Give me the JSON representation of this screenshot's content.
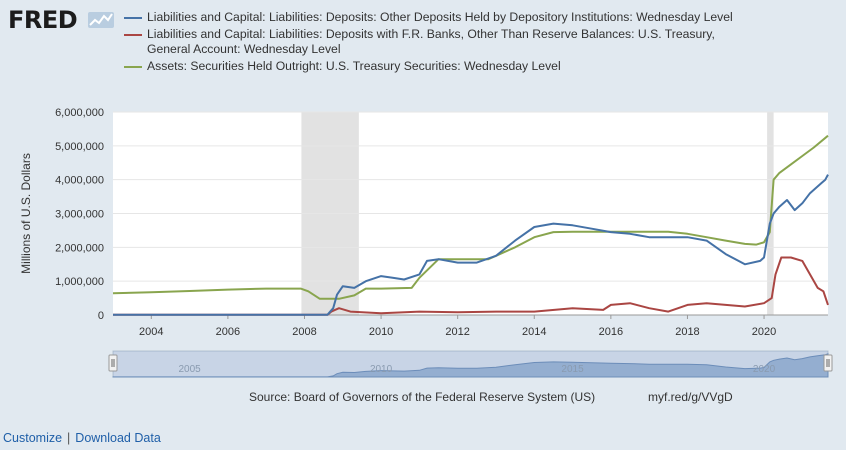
{
  "brand": {
    "logo_text": "FRED"
  },
  "legend": [
    {
      "label": "Liabilities and Capital: Liabilities: Deposits: Other Deposits Held by Depository Institutions: Wednesday Level",
      "color": "#4572a7"
    },
    {
      "label": "Liabilities and Capital: Liabilities: Deposits with F.R. Banks, Other Than Reserve Balances: U.S. Treasury, General Account: Wednesday Level",
      "color": "#aa4643"
    },
    {
      "label": "Assets: Securities Held Outright: U.S. Treasury Securities: Wednesday Level",
      "color": "#89a54e"
    }
  ],
  "chart_data": {
    "type": "line",
    "ylabel": "Millions of U.S. Dollars",
    "ylim": [
      0,
      6000000
    ],
    "xlim": [
      2003.0,
      2021.67
    ],
    "yticks": [
      "0",
      "1,000,000",
      "2,000,000",
      "3,000,000",
      "4,000,000",
      "5,000,000",
      "6,000,000"
    ],
    "xticks": [
      "2004",
      "2006",
      "2008",
      "2010",
      "2012",
      "2014",
      "2016",
      "2018",
      "2020"
    ],
    "recessions": [
      [
        2007.92,
        2009.42
      ],
      [
        2020.08,
        2020.25
      ]
    ],
    "series": [
      {
        "name": "Liabilities and Capital: Liabilities: Deposits: Other Deposits Held by Depository Institutions: Wednesday Level",
        "color": "#4572a7",
        "x": [
          2003.0,
          2008.6,
          2008.75,
          2008.85,
          2009.0,
          2009.3,
          2009.6,
          2010.0,
          2010.3,
          2010.6,
          2011.0,
          2011.2,
          2011.5,
          2012.0,
          2012.5,
          2013.0,
          2013.5,
          2014.0,
          2014.5,
          2015.0,
          2015.5,
          2016.0,
          2016.5,
          2017.0,
          2017.5,
          2018.0,
          2018.5,
          2019.0,
          2019.5,
          2019.9,
          2020.0,
          2020.15,
          2020.25,
          2020.4,
          2020.6,
          2020.8,
          2021.0,
          2021.2,
          2021.4,
          2021.5,
          2021.6,
          2021.67
        ],
        "y": [
          10000,
          10000,
          200000,
          600000,
          850000,
          800000,
          1000000,
          1150000,
          1100000,
          1050000,
          1200000,
          1600000,
          1650000,
          1550000,
          1550000,
          1750000,
          2200000,
          2600000,
          2700000,
          2650000,
          2550000,
          2450000,
          2400000,
          2300000,
          2300000,
          2300000,
          2200000,
          1800000,
          1500000,
          1600000,
          1700000,
          2700000,
          3000000,
          3200000,
          3400000,
          3100000,
          3300000,
          3600000,
          3800000,
          3900000,
          4000000,
          4150000
        ]
      },
      {
        "name": "Liabilities and Capital: Liabilities: Deposits with F.R. Banks, Other Than Reserve Balances: U.S. Treasury, General Account: Wednesday Level",
        "color": "#aa4643",
        "x": [
          2003.0,
          2008.6,
          2008.7,
          2008.9,
          2009.2,
          2010.0,
          2011.0,
          2012.0,
          2013.0,
          2014.0,
          2015.0,
          2015.8,
          2016.0,
          2016.5,
          2017.0,
          2017.5,
          2018.0,
          2018.5,
          2019.0,
          2019.5,
          2020.0,
          2020.2,
          2020.3,
          2020.45,
          2020.7,
          2021.0,
          2021.2,
          2021.4,
          2021.55,
          2021.67
        ],
        "y": [
          5000,
          5000,
          100000,
          200000,
          100000,
          50000,
          100000,
          80000,
          100000,
          100000,
          200000,
          150000,
          300000,
          350000,
          200000,
          100000,
          300000,
          350000,
          300000,
          250000,
          350000,
          500000,
          1200000,
          1700000,
          1700000,
          1600000,
          1200000,
          800000,
          700000,
          300000
        ]
      },
      {
        "name": "Assets: Securities Held Outright: U.S. Treasury Securities: Wednesday Level",
        "color": "#89a54e",
        "x": [
          2003.0,
          2004.0,
          2005.0,
          2006.0,
          2007.0,
          2007.9,
          2008.1,
          2008.4,
          2008.9,
          2009.3,
          2009.6,
          2010.0,
          2010.8,
          2011.0,
          2011.5,
          2012.0,
          2012.8,
          2013.0,
          2013.5,
          2014.0,
          2014.5,
          2015.0,
          2016.0,
          2017.0,
          2017.5,
          2018.0,
          2018.5,
          2019.0,
          2019.5,
          2019.8,
          2020.0,
          2020.15,
          2020.25,
          2020.4,
          2020.7,
          2021.0,
          2021.3,
          2021.67
        ],
        "y": [
          640000,
          670000,
          710000,
          750000,
          780000,
          780000,
          700000,
          480000,
          480000,
          580000,
          780000,
          780000,
          800000,
          1100000,
          1650000,
          1650000,
          1650000,
          1750000,
          2000000,
          2300000,
          2450000,
          2460000,
          2460000,
          2460000,
          2460000,
          2400000,
          2300000,
          2200000,
          2100000,
          2080000,
          2150000,
          2450000,
          4000000,
          4200000,
          4450000,
          4700000,
          4950000,
          5300000
        ]
      }
    ]
  },
  "navigator": {
    "ticks": [
      "2005",
      "2010",
      "2015",
      "2020"
    ]
  },
  "source": "Source: Board of Governors of the Federal Reserve System (US)",
  "shortlink": "myf.red/g/VVgD",
  "footer": {
    "customize": "Customize",
    "separator": "|",
    "download": "Download Data"
  }
}
